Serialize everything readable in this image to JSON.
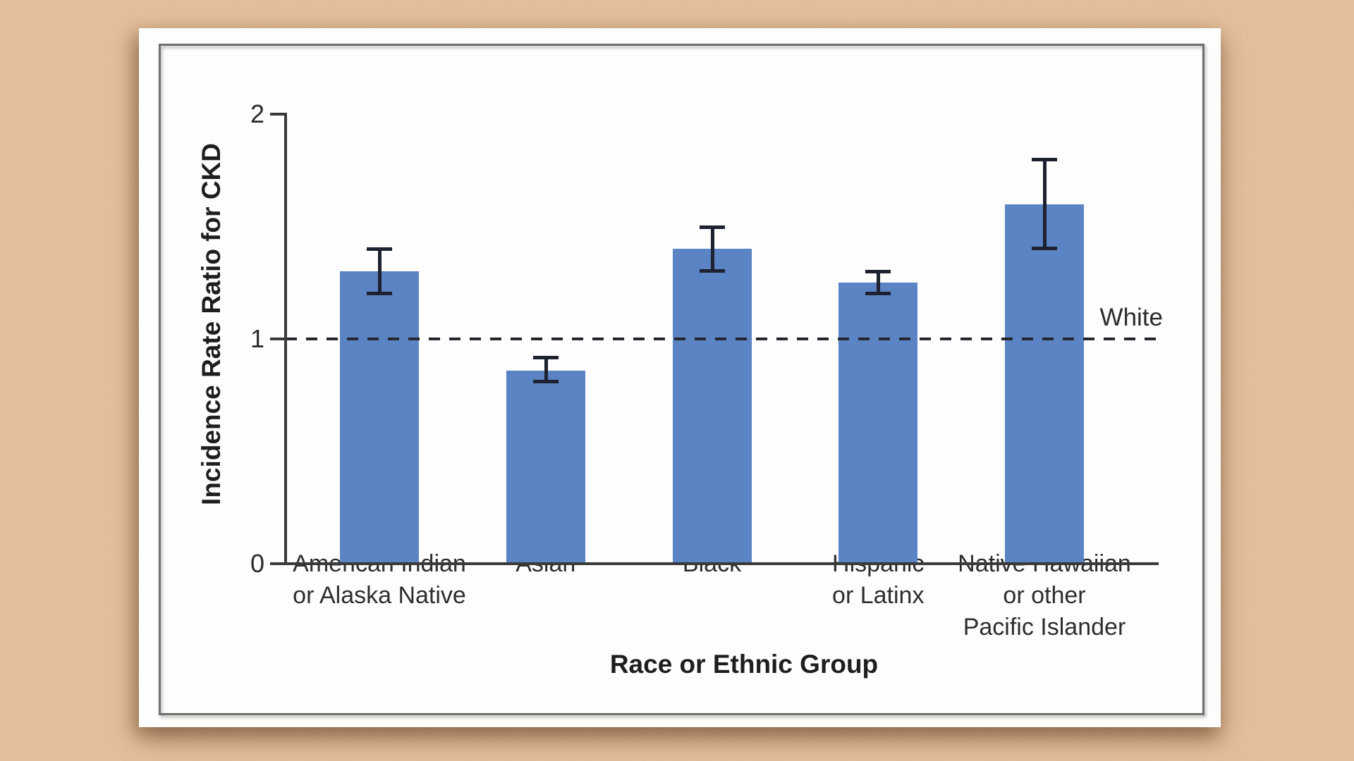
{
  "figure": {
    "background_color": "#e8c19d",
    "panel_color": "#fdfdfd",
    "frame_color": "#6f6f6f"
  },
  "chart_data": {
    "type": "bar",
    "title": "",
    "xlabel": "Race or Ethnic Group",
    "ylabel": "Incidence Rate Ratio for CKD",
    "categories": [
      "American Indian or Alaska Native",
      "Asian",
      "Black",
      "Hispanic or Latinx",
      "Native Hawaiian or other Pacific Islander"
    ],
    "category_label_lines": [
      [
        "American Indian",
        "or Alaska Native"
      ],
      [
        "Asian"
      ],
      [
        "Black"
      ],
      [
        "Hispanic",
        "or Latinx"
      ],
      [
        "Native Hawaiian",
        "or other",
        "Pacific Islander"
      ]
    ],
    "values": [
      1.3,
      0.86,
      1.4,
      1.25,
      1.6
    ],
    "ci_low": [
      1.2,
      0.81,
      1.3,
      1.2,
      1.4
    ],
    "ci_high": [
      1.4,
      0.92,
      1.5,
      1.3,
      1.8
    ],
    "ylim": [
      0,
      2
    ],
    "yticks": [
      0,
      1,
      2
    ],
    "grid": false,
    "legend_position": "none",
    "reference_line": {
      "value": 1,
      "label": "White",
      "style": "dashed"
    },
    "colors": {
      "bar": "#5b84c4",
      "error_bar": "#1d2130",
      "axis": "#3a3a3a",
      "reference": "#26262e",
      "text": "#2b2b2b"
    }
  }
}
